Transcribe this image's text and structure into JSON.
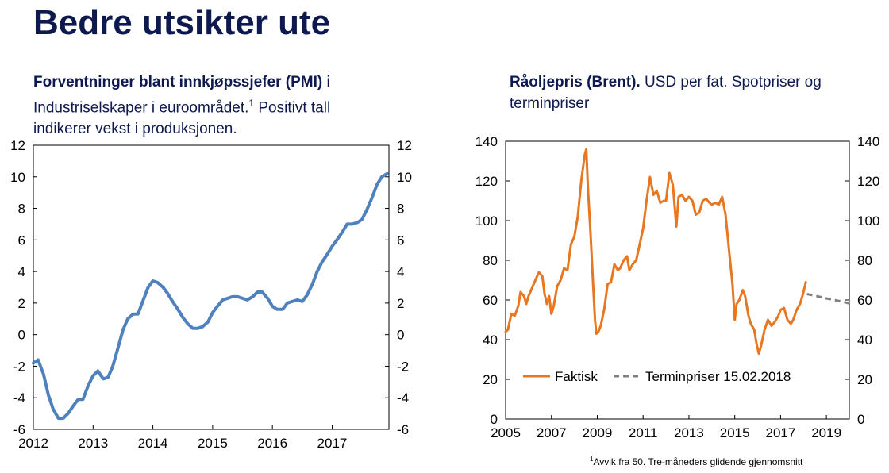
{
  "page": {
    "title": "Bedre utsikter ute"
  },
  "chart_data": [
    {
      "id": "pmi",
      "type": "line",
      "title_bold": "Forventninger blant innkjøpssjefer (PMI)",
      "title_rest1": " i Industriselskaper i euroområdet.",
      "title_sup": "1",
      "title_rest2": " Positivt tall indikerer vekst i produksjonen.",
      "xlim": [
        2012.0,
        2017.95
      ],
      "ylim": [
        -6,
        12
      ],
      "xticks": [
        "2012",
        "2013",
        "2014",
        "2015",
        "2016",
        "2017"
      ],
      "xtick_values": [
        2012,
        2013,
        2014,
        2015,
        2016,
        2017
      ],
      "yticks": [
        "-6",
        "-4",
        "-2",
        "0",
        "2",
        "4",
        "6",
        "8",
        "10",
        "12"
      ],
      "ytick_values": [
        -6,
        -4,
        -2,
        0,
        2,
        4,
        6,
        8,
        10,
        12
      ],
      "series": [
        {
          "name": "PMI",
          "color": "#4f81bd",
          "x": [
            2012.0,
            2012.08,
            2012.17,
            2012.25,
            2012.33,
            2012.42,
            2012.5,
            2012.58,
            2012.67,
            2012.75,
            2012.83,
            2012.92,
            2013.0,
            2013.08,
            2013.17,
            2013.25,
            2013.33,
            2013.42,
            2013.5,
            2013.58,
            2013.67,
            2013.75,
            2013.83,
            2013.92,
            2014.0,
            2014.08,
            2014.17,
            2014.25,
            2014.33,
            2014.42,
            2014.5,
            2014.58,
            2014.67,
            2014.75,
            2014.83,
            2014.92,
            2015.0,
            2015.08,
            2015.17,
            2015.25,
            2015.33,
            2015.42,
            2015.5,
            2015.58,
            2015.67,
            2015.75,
            2015.83,
            2015.92,
            2016.0,
            2016.08,
            2016.17,
            2016.25,
            2016.33,
            2016.42,
            2016.5,
            2016.58,
            2016.67,
            2016.75,
            2016.83,
            2016.92,
            2017.0,
            2017.08,
            2017.17,
            2017.25,
            2017.33,
            2017.42,
            2017.5,
            2017.58,
            2017.67,
            2017.75,
            2017.83,
            2017.92
          ],
          "values": [
            -1.8,
            -1.6,
            -2.5,
            -3.8,
            -4.7,
            -5.3,
            -5.3,
            -5.0,
            -4.5,
            -4.1,
            -4.1,
            -3.2,
            -2.6,
            -2.3,
            -2.8,
            -2.7,
            -2.0,
            -0.8,
            0.3,
            1.0,
            1.3,
            1.3,
            2.1,
            3.0,
            3.4,
            3.3,
            3.0,
            2.6,
            2.1,
            1.6,
            1.1,
            0.7,
            0.4,
            0.4,
            0.5,
            0.8,
            1.4,
            1.8,
            2.2,
            2.3,
            2.4,
            2.4,
            2.3,
            2.2,
            2.4,
            2.7,
            2.7,
            2.3,
            1.8,
            1.6,
            1.6,
            2.0,
            2.1,
            2.2,
            2.1,
            2.5,
            3.2,
            4.0,
            4.6,
            5.1,
            5.6,
            6.0,
            6.5,
            7.0,
            7.0,
            7.1,
            7.3,
            7.9,
            8.7,
            9.5,
            10.0,
            10.2
          ]
        }
      ]
    },
    {
      "id": "brent",
      "type": "line",
      "title_bold": "Råoljepris (Brent).",
      "title_rest1": " USD per fat. Spotpriser og terminpriser",
      "xlim": [
        2005.0,
        2020.0
      ],
      "ylim": [
        0,
        140
      ],
      "xticks": [
        "2005",
        "2007",
        "2009",
        "2011",
        "2013",
        "2015",
        "2017",
        "2019"
      ],
      "xtick_values": [
        2005,
        2007,
        2009,
        2011,
        2013,
        2015,
        2017,
        2019
      ],
      "yticks": [
        "0",
        "20",
        "40",
        "60",
        "80",
        "100",
        "120",
        "140"
      ],
      "ytick_values": [
        0,
        20,
        40,
        60,
        80,
        100,
        120,
        140
      ],
      "legend_position": "bottom-center",
      "series": [
        {
          "name": "Faktisk",
          "color": "#e87722",
          "style": "solid",
          "x": [
            2005.0,
            2005.1,
            2005.25,
            2005.4,
            2005.55,
            2005.65,
            2005.8,
            2005.9,
            2006.0,
            2006.15,
            2006.3,
            2006.45,
            2006.6,
            2006.7,
            2006.8,
            2006.9,
            2007.0,
            2007.1,
            2007.25,
            2007.4,
            2007.55,
            2007.7,
            2007.85,
            2008.0,
            2008.15,
            2008.3,
            2008.45,
            2008.52,
            2008.6,
            2008.7,
            2008.8,
            2008.9,
            2008.96,
            2009.05,
            2009.15,
            2009.3,
            2009.45,
            2009.6,
            2009.75,
            2009.9,
            2010.0,
            2010.15,
            2010.3,
            2010.4,
            2010.55,
            2010.7,
            2010.85,
            2011.0,
            2011.15,
            2011.3,
            2011.45,
            2011.6,
            2011.75,
            2011.9,
            2012.0,
            2012.15,
            2012.3,
            2012.45,
            2012.55,
            2012.7,
            2012.85,
            2013.0,
            2013.15,
            2013.3,
            2013.45,
            2013.6,
            2013.75,
            2013.9,
            2014.0,
            2014.15,
            2014.3,
            2014.45,
            2014.6,
            2014.75,
            2014.9,
            2015.0,
            2015.08,
            2015.2,
            2015.35,
            2015.45,
            2015.6,
            2015.7,
            2015.85,
            2015.95,
            2016.05,
            2016.15,
            2016.3,
            2016.45,
            2016.6,
            2016.75,
            2016.9,
            2017.0,
            2017.15,
            2017.3,
            2017.45,
            2017.55,
            2017.7,
            2017.85,
            2018.0,
            2018.1
          ],
          "values": [
            44,
            45,
            53,
            52,
            57,
            64,
            62,
            58,
            62,
            66,
            70,
            74,
            72,
            63,
            58,
            62,
            53,
            57,
            67,
            70,
            76,
            75,
            88,
            92,
            102,
            120,
            133,
            136,
            115,
            95,
            72,
            50,
            43,
            44,
            47,
            55,
            68,
            69,
            78,
            75,
            76,
            80,
            82,
            75,
            78,
            80,
            88,
            96,
            110,
            122,
            113,
            115,
            109,
            110,
            110,
            124,
            118,
            97,
            112,
            113,
            110,
            112,
            110,
            103,
            104,
            110,
            111,
            109,
            108,
            109,
            108,
            112,
            103,
            85,
            68,
            50,
            58,
            60,
            65,
            62,
            52,
            48,
            45,
            38,
            33,
            37,
            45,
            50,
            47,
            49,
            52,
            55,
            56,
            50,
            48,
            50,
            55,
            58,
            64,
            69
          ]
        },
        {
          "name": "Terminpriser 15.02.2018",
          "color": "#808080",
          "style": "dashed",
          "x": [
            2018.15,
            2018.5,
            2018.75,
            2019.0,
            2019.25,
            2019.5,
            2019.75,
            2020.0
          ],
          "values": [
            63,
            62.2,
            61.5,
            60.8,
            60.2,
            59.6,
            59.0,
            58.3
          ]
        }
      ]
    }
  ],
  "footnote": {
    "sup": "1",
    "text": "Avvik fra 50. Tre-måneders glidende gjennomsnitt"
  }
}
